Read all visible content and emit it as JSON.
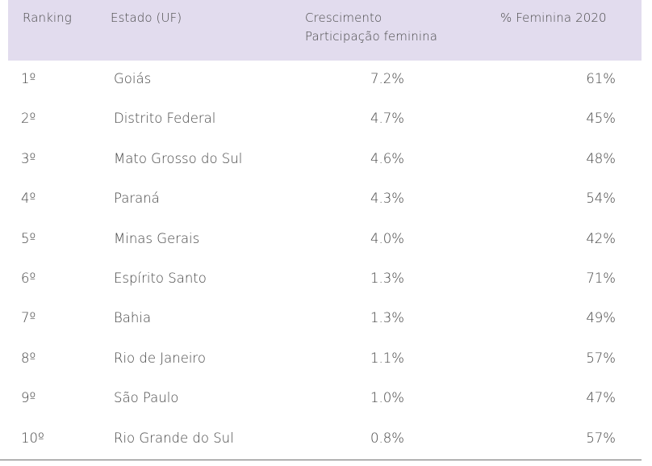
{
  "table": {
    "headers": {
      "ranking": "Ranking",
      "state": "Estado (UF)",
      "growth_line1": "Crescimento",
      "growth_line2": "Participação feminina",
      "female_2020": "% Feminina 2020"
    },
    "rows": [
      {
        "rank": "1º",
        "state": "Goiás",
        "growth": "7.2%",
        "female": "61%"
      },
      {
        "rank": "2º",
        "state": "Distrito Federal",
        "growth": "4.7%",
        "female": "45%"
      },
      {
        "rank": "3º",
        "state": "Mato Grosso do Sul",
        "growth": "4.6%",
        "female": "48%"
      },
      {
        "rank": "4º",
        "state": "Paraná",
        "growth": "4.3%",
        "female": "54%"
      },
      {
        "rank": "5º",
        "state": "Minas Gerais",
        "growth": "4.0%",
        "female": "42%"
      },
      {
        "rank": "6º",
        "state": "Espírito Santo",
        "growth": "1.3%",
        "female": "71%"
      },
      {
        "rank": "7º",
        "state": "Bahia",
        "growth": "1.3%",
        "female": "49%"
      },
      {
        "rank": "8º",
        "state": "Rio de Janeiro",
        "growth": "1.1%",
        "female": "57%"
      },
      {
        "rank": "9º",
        "state": "São Paulo",
        "growth": "1.0%",
        "female": "47%"
      },
      {
        "rank": "10º",
        "state": "Rio Grande do Sul",
        "growth": "0.8%",
        "female": "57%"
      }
    ],
    "colors": {
      "header_background": "#e2dcee",
      "text": "#454545",
      "bottom_rule": "#6e6e6e"
    }
  }
}
